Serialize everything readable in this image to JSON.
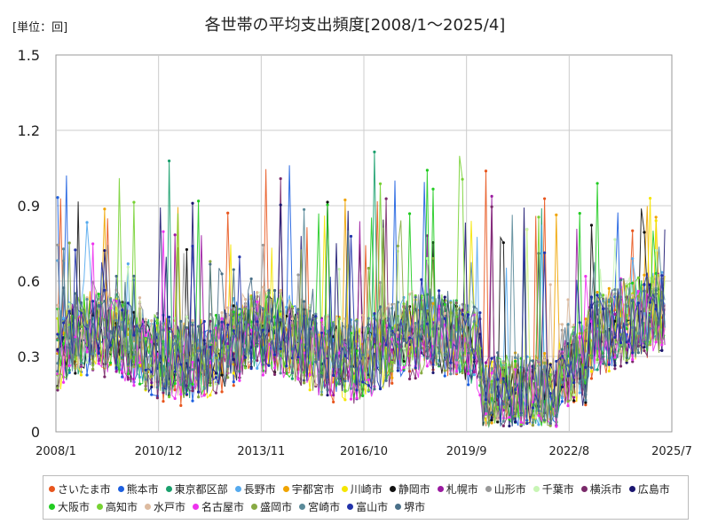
{
  "chart_data": {
    "type": "line",
    "title": "各世帯の平均支出頻度[2008/1～2025/4]",
    "unit_label": "[単位：回]",
    "xlabel": "",
    "ylabel": "",
    "x_ticks": [
      "2008/1",
      "2010/12",
      "2013/11",
      "2016/10",
      "2019/9",
      "2022/8",
      "2025/7"
    ],
    "y_ticks": [
      "0",
      "0.3",
      "0.6",
      "0.9",
      "1.2",
      "1.5"
    ],
    "ylim": [
      0,
      1.5
    ],
    "grid": true,
    "legend_position": "bottom",
    "approx_range_note": null,
    "series": [
      {
        "name": "さいたま市",
        "color": "#e8561e",
        "peaks": [
          1.01,
          0.98,
          0.97,
          1.13
        ]
      },
      {
        "name": "熊本市",
        "color": "#1c5fe0",
        "peaks": [
          1.07,
          1.03
        ]
      },
      {
        "name": "東京都区部",
        "color": "#1aa06d",
        "peaks": [
          1.09,
          1.13
        ]
      },
      {
        "name": "長野市",
        "color": "#55aaee",
        "peaks": [
          0.84,
          0.72
        ]
      },
      {
        "name": "宇都宮市",
        "color": "#f0a400",
        "peaks": [
          0.95
        ]
      },
      {
        "name": "川崎市",
        "color": "#f5e600",
        "peaks": [
          0.96,
          0.95
        ]
      },
      {
        "name": "静岡市",
        "color": "#111111",
        "peaks": [
          0.95
        ]
      },
      {
        "name": "札幌市",
        "color": "#9a1aa0",
        "peaks": [
          0.98
        ]
      },
      {
        "name": "山形市",
        "color": "#999999",
        "peaks": [
          0.78
        ]
      },
      {
        "name": "千葉市",
        "color": "#c8f5b5",
        "peaks": [
          0.82
        ]
      },
      {
        "name": "横浜市",
        "color": "#7a2a6a",
        "peaks": [
          1.04
        ]
      },
      {
        "name": "広島市",
        "color": "#1b1670",
        "peaks": [
          0.92
        ]
      },
      {
        "name": "大阪市",
        "color": "#22cc22",
        "peaks": [
          1.02,
          1.14,
          1.16
        ]
      },
      {
        "name": "高知市",
        "color": "#77d233",
        "peaks": [
          1.12,
          1.05
        ]
      },
      {
        "name": "水戸市",
        "color": "#ddbba0",
        "peaks": [
          0.62
        ]
      },
      {
        "name": "名古屋市",
        "color": "#ee33ee",
        "peaks": [
          0.8
        ]
      },
      {
        "name": "盛岡市",
        "color": "#88aa44",
        "peaks": [
          0.86
        ]
      },
      {
        "name": "宮崎市",
        "color": "#5a8a99",
        "peaks": [
          0.9
        ]
      },
      {
        "name": "富山市",
        "color": "#2233aa",
        "peaks": [
          0.8
        ]
      },
      {
        "name": "堺市",
        "color": "#4a7088",
        "peaks": [
          0.7
        ]
      }
    ]
  }
}
